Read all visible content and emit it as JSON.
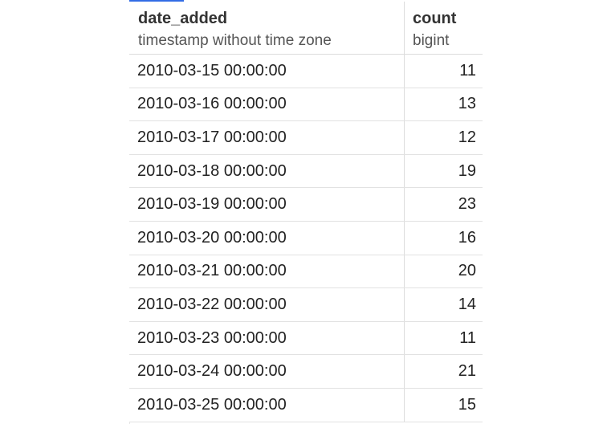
{
  "table": {
    "columns": [
      {
        "name": "date_added",
        "type": "timestamp without time zone"
      },
      {
        "name": "count",
        "type": "bigint"
      }
    ],
    "rows": [
      {
        "date_added": "2010-03-15 00:00:00",
        "count": "11"
      },
      {
        "date_added": "2010-03-16 00:00:00",
        "count": "13"
      },
      {
        "date_added": "2010-03-17 00:00:00",
        "count": "12"
      },
      {
        "date_added": "2010-03-18 00:00:00",
        "count": "19"
      },
      {
        "date_added": "2010-03-19 00:00:00",
        "count": "23"
      },
      {
        "date_added": "2010-03-20 00:00:00",
        "count": "16"
      },
      {
        "date_added": "2010-03-21 00:00:00",
        "count": "20"
      },
      {
        "date_added": "2010-03-22 00:00:00",
        "count": "14"
      },
      {
        "date_added": "2010-03-23 00:00:00",
        "count": "11"
      },
      {
        "date_added": "2010-03-24 00:00:00",
        "count": "21"
      },
      {
        "date_added": "2010-03-25 00:00:00",
        "count": "15"
      }
    ]
  }
}
